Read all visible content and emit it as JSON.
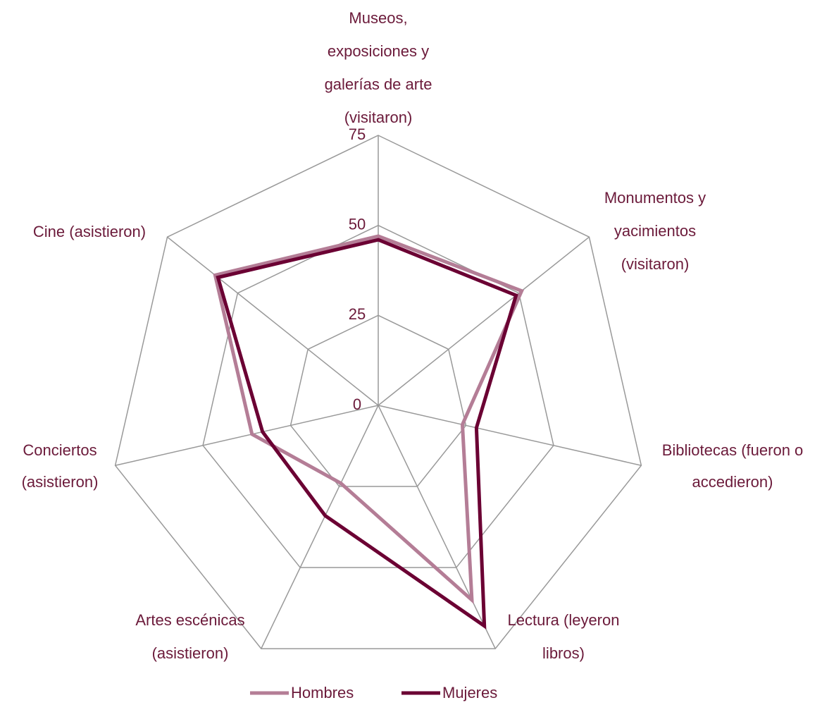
{
  "chart_data": {
    "type": "radar",
    "categories": [
      "Museos, exposiciones y galerías de arte (visitaron)",
      "Monumentos y yacimientos (visitaron)",
      "Bibliotecas (fueron o accedieron)",
      "Lectura (leyeron libros)",
      "Artes escénicas (asistieron)",
      "Conciertos (asistieron)",
      "Cine (asistieron)"
    ],
    "series": [
      {
        "name": "Hombres",
        "color": "#b47d96",
        "values": [
          47,
          51,
          24,
          60,
          24,
          36,
          58
        ]
      },
      {
        "name": "Mujeres",
        "color": "#6b0033",
        "values": [
          46,
          49,
          28,
          68,
          34,
          33,
          57
        ]
      }
    ],
    "ylim": [
      0,
      75
    ],
    "yticks": [
      0,
      25,
      50,
      75
    ],
    "grid": true,
    "legend": "bottom"
  }
}
